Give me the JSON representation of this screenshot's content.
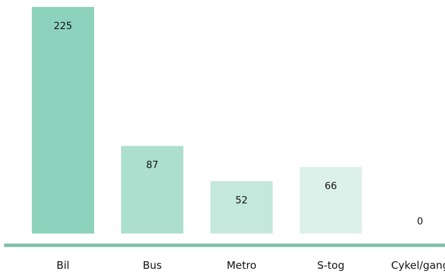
{
  "chart_data": {
    "type": "bar",
    "categories": [
      "Bil",
      "Bus",
      "Metro",
      "S-tog",
      "Cykel/gang"
    ],
    "values": [
      225,
      87,
      52,
      66,
      0
    ],
    "title": "",
    "xlabel": "",
    "ylabel": "",
    "ylim": [
      0,
      225
    ],
    "grid": false,
    "legend": "none",
    "colors": {
      "bars": [
        "#8dd2bc",
        "#addfce",
        "#c4e8db",
        "#dcf1ea",
        "#e9f6f1"
      ],
      "axis": "#7dbfa7",
      "text": "#111111"
    }
  }
}
